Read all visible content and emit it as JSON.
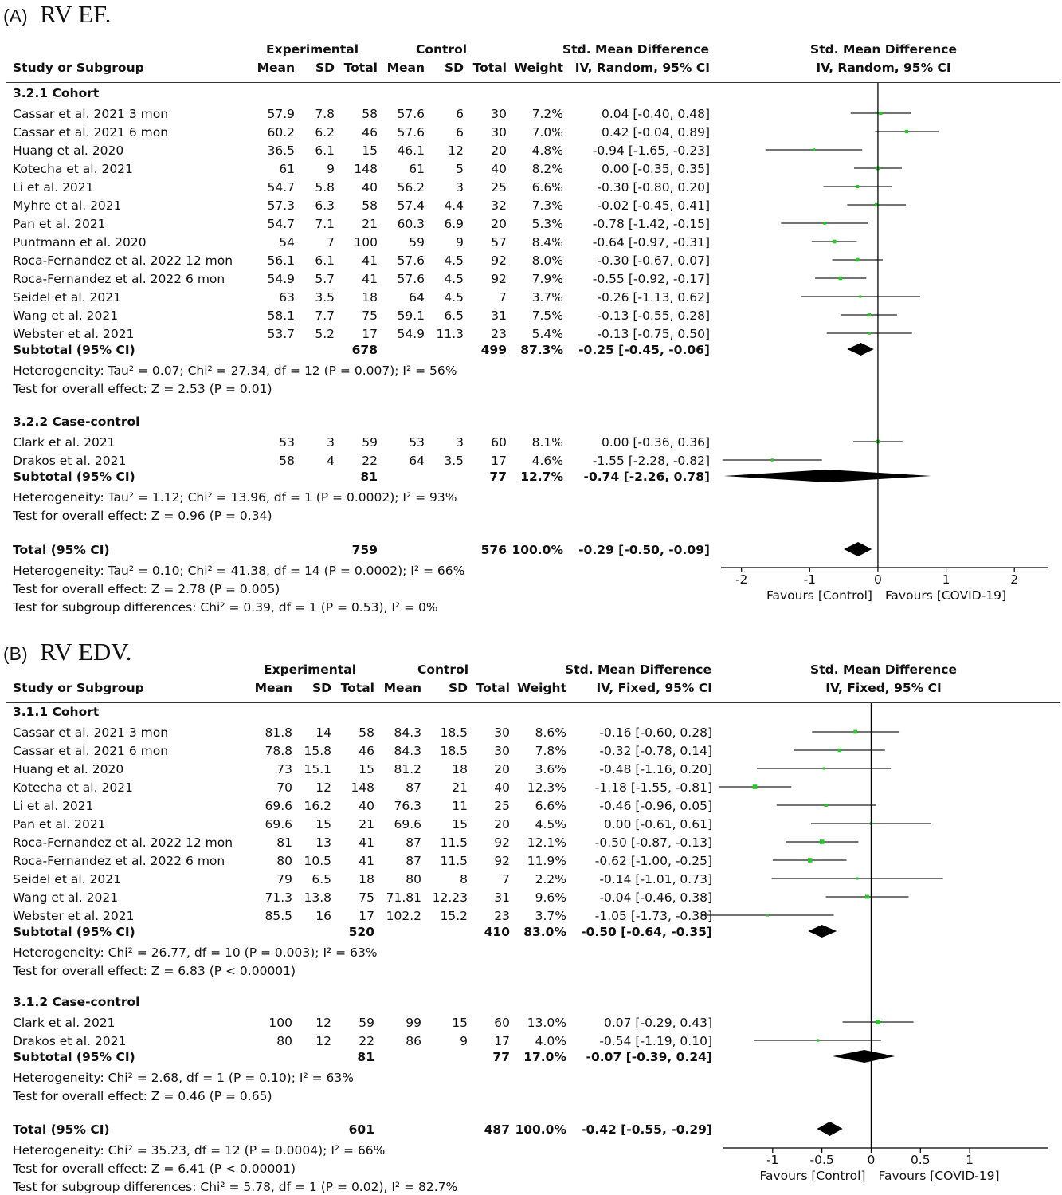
{
  "panels": [
    {
      "title_letter": "(A)",
      "title_text": "RV EF.",
      "method": "IV, Random, 95% CI",
      "header": {
        "study": "Study or Subgroup",
        "experimental": "Experimental",
        "control": "Control",
        "mean": "Mean",
        "sd": "SD",
        "total": "Total",
        "weight": "Weight",
        "smd": "Std. Mean Difference"
      },
      "subgroups": [
        {
          "name": "3.2.1 Cohort",
          "studies": [
            {
              "study": "Cassar et al. 2021 3 mon",
              "exp_mean": "57.9",
              "exp_sd": "7.8",
              "exp_total": "58",
              "ctl_mean": "57.6",
              "ctl_sd": "6",
              "ctl_total": "30",
              "weight": "7.2%",
              "ci_text": "0.04 [-0.40, 0.48]"
            },
            {
              "study": "Cassar et al. 2021 6 mon",
              "exp_mean": "60.2",
              "exp_sd": "6.2",
              "exp_total": "46",
              "ctl_mean": "57.6",
              "ctl_sd": "6",
              "ctl_total": "30",
              "weight": "7.0%",
              "ci_text": "0.42 [-0.04, 0.89]"
            },
            {
              "study": "Huang et al. 2020",
              "exp_mean": "36.5",
              "exp_sd": "6.1",
              "exp_total": "15",
              "ctl_mean": "46.1",
              "ctl_sd": "12",
              "ctl_total": "20",
              "weight": "4.8%",
              "ci_text": "-0.94 [-1.65, -0.23]"
            },
            {
              "study": "Kotecha et al. 2021",
              "exp_mean": "61",
              "exp_sd": "9",
              "exp_total": "148",
              "ctl_mean": "61",
              "ctl_sd": "5",
              "ctl_total": "40",
              "weight": "8.2%",
              "ci_text": "0.00 [-0.35, 0.35]"
            },
            {
              "study": "Li et al. 2021",
              "exp_mean": "54.7",
              "exp_sd": "5.8",
              "exp_total": "40",
              "ctl_mean": "56.2",
              "ctl_sd": "3",
              "ctl_total": "25",
              "weight": "6.6%",
              "ci_text": "-0.30 [-0.80, 0.20]"
            },
            {
              "study": "Myhre et al. 2021",
              "exp_mean": "57.3",
              "exp_sd": "6.3",
              "exp_total": "58",
              "ctl_mean": "57.4",
              "ctl_sd": "4.4",
              "ctl_total": "32",
              "weight": "7.3%",
              "ci_text": "-0.02 [-0.45, 0.41]"
            },
            {
              "study": "Pan et al. 2021",
              "exp_mean": "54.7",
              "exp_sd": "7.1",
              "exp_total": "21",
              "ctl_mean": "60.3",
              "ctl_sd": "6.9",
              "ctl_total": "20",
              "weight": "5.3%",
              "ci_text": "-0.78 [-1.42, -0.15]"
            },
            {
              "study": "Puntmann et al. 2020",
              "exp_mean": "54",
              "exp_sd": "7",
              "exp_total": "100",
              "ctl_mean": "59",
              "ctl_sd": "9",
              "ctl_total": "57",
              "weight": "8.4%",
              "ci_text": "-0.64 [-0.97, -0.31]"
            },
            {
              "study": "Roca-Fernandez et al. 2022 12 mon",
              "exp_mean": "56.1",
              "exp_sd": "6.1",
              "exp_total": "41",
              "ctl_mean": "57.6",
              "ctl_sd": "4.5",
              "ctl_total": "92",
              "weight": "8.0%",
              "ci_text": "-0.30 [-0.67, 0.07]"
            },
            {
              "study": "Roca-Fernandez et al. 2022 6 mon",
              "exp_mean": "54.9",
              "exp_sd": "5.7",
              "exp_total": "41",
              "ctl_mean": "57.6",
              "ctl_sd": "4.5",
              "ctl_total": "92",
              "weight": "7.9%",
              "ci_text": "-0.55 [-0.92, -0.17]"
            },
            {
              "study": "Seidel et al. 2021",
              "exp_mean": "63",
              "exp_sd": "3.5",
              "exp_total": "18",
              "ctl_mean": "64",
              "ctl_sd": "4.5",
              "ctl_total": "7",
              "weight": "3.7%",
              "ci_text": "-0.26 [-1.13, 0.62]"
            },
            {
              "study": "Wang et al. 2021",
              "exp_mean": "58.1",
              "exp_sd": "7.7",
              "exp_total": "75",
              "ctl_mean": "59.1",
              "ctl_sd": "6.5",
              "ctl_total": "31",
              "weight": "7.5%",
              "ci_text": "-0.13 [-0.55, 0.28]"
            },
            {
              "study": "Webster et al. 2021",
              "exp_mean": "53.7",
              "exp_sd": "5.2",
              "exp_total": "17",
              "ctl_mean": "54.9",
              "ctl_sd": "11.3",
              "ctl_total": "23",
              "weight": "5.4%",
              "ci_text": "-0.13 [-0.75, 0.50]"
            }
          ],
          "subtotal": {
            "label": "Subtotal (95% CI)",
            "exp_total": "678",
            "ctl_total": "499",
            "weight": "87.3%",
            "ci_text": "-0.25 [-0.45, -0.06]"
          },
          "heterogeneity": "Heterogeneity: Tau² = 0.07; Chi² = 27.34, df = 12 (P = 0.007); I² = 56%",
          "overall": "Test for overall effect: Z = 2.53 (P = 0.01)"
        },
        {
          "name": "3.2.2 Case-control",
          "studies": [
            {
              "study": "Clark et al. 2021",
              "exp_mean": "53",
              "exp_sd": "3",
              "exp_total": "59",
              "ctl_mean": "53",
              "ctl_sd": "3",
              "ctl_total": "60",
              "weight": "8.1%",
              "ci_text": "0.00 [-0.36, 0.36]"
            },
            {
              "study": "Drakos et al. 2021",
              "exp_mean": "58",
              "exp_sd": "4",
              "exp_total": "22",
              "ctl_mean": "64",
              "ctl_sd": "3.5",
              "ctl_total": "17",
              "weight": "4.6%",
              "ci_text": "-1.55 [-2.28, -0.82]"
            }
          ],
          "subtotal": {
            "label": "Subtotal (95% CI)",
            "exp_total": "81",
            "ctl_total": "77",
            "weight": "12.7%",
            "ci_text": "-0.74 [-2.26, 0.78]"
          },
          "heterogeneity": "Heterogeneity: Tau² = 1.12; Chi² = 13.96, df = 1 (P = 0.0002); I² = 93%",
          "overall": "Test for overall effect: Z = 0.96 (P = 0.34)"
        }
      ],
      "total": {
        "label": "Total (95% CI)",
        "exp_total": "759",
        "ctl_total": "576",
        "weight": "100.0%",
        "ci_text": "-0.29 [-0.50, -0.09]"
      },
      "footer": [
        "Heterogeneity: Tau² = 0.10; Chi² = 41.38, df = 14 (P = 0.0002); I² = 66%",
        "Test for overall effect: Z = 2.78 (P = 0.005)",
        "Test for subgroup differences: Chi² = 0.39, df = 1 (P = 0.53), I² = 0%"
      ],
      "axis": {
        "ticks": [
          "-2",
          "-1",
          "0",
          "1",
          "2"
        ]
      },
      "favours_left": "Favours [Control]",
      "favours_right": "Favours [COVID-19]"
    },
    {
      "title_letter": "(B)",
      "title_text": "RV EDV.",
      "method": "IV, Fixed, 95% CI",
      "header": {
        "study": "Study or Subgroup",
        "experimental": "Experimental",
        "control": "Control",
        "mean": "Mean",
        "sd": "SD",
        "total": "Total",
        "weight": "Weight",
        "smd": "Std. Mean Difference"
      },
      "subgroups": [
        {
          "name": "3.1.1 Cohort",
          "studies": [
            {
              "study": "Cassar et al. 2021 3 mon",
              "exp_mean": "81.8",
              "exp_sd": "14",
              "exp_total": "58",
              "ctl_mean": "84.3",
              "ctl_sd": "18.5",
              "ctl_total": "30",
              "weight": "8.6%",
              "ci_text": "-0.16 [-0.60, 0.28]"
            },
            {
              "study": "Cassar et al. 2021 6 mon",
              "exp_mean": "78.8",
              "exp_sd": "15.8",
              "exp_total": "46",
              "ctl_mean": "84.3",
              "ctl_sd": "18.5",
              "ctl_total": "30",
              "weight": "7.8%",
              "ci_text": "-0.32 [-0.78, 0.14]"
            },
            {
              "study": "Huang et al. 2020",
              "exp_mean": "73",
              "exp_sd": "15.1",
              "exp_total": "15",
              "ctl_mean": "81.2",
              "ctl_sd": "18",
              "ctl_total": "20",
              "weight": "3.6%",
              "ci_text": "-0.48 [-1.16, 0.20]"
            },
            {
              "study": "Kotecha et al. 2021",
              "exp_mean": "70",
              "exp_sd": "12",
              "exp_total": "148",
              "ctl_mean": "87",
              "ctl_sd": "21",
              "ctl_total": "40",
              "weight": "12.3%",
              "ci_text": "-1.18 [-1.55, -0.81]"
            },
            {
              "study": "Li et al. 2021",
              "exp_mean": "69.6",
              "exp_sd": "16.2",
              "exp_total": "40",
              "ctl_mean": "76.3",
              "ctl_sd": "11",
              "ctl_total": "25",
              "weight": "6.6%",
              "ci_text": "-0.46 [-0.96, 0.05]"
            },
            {
              "study": "Pan et al. 2021",
              "exp_mean": "69.6",
              "exp_sd": "15",
              "exp_total": "21",
              "ctl_mean": "69.6",
              "ctl_sd": "15",
              "ctl_total": "20",
              "weight": "4.5%",
              "ci_text": "0.00 [-0.61, 0.61]"
            },
            {
              "study": "Roca-Fernandez et al. 2022 12 mon",
              "exp_mean": "81",
              "exp_sd": "13",
              "exp_total": "41",
              "ctl_mean": "87",
              "ctl_sd": "11.5",
              "ctl_total": "92",
              "weight": "12.1%",
              "ci_text": "-0.50 [-0.87, -0.13]"
            },
            {
              "study": "Roca-Fernandez et al. 2022 6 mon",
              "exp_mean": "80",
              "exp_sd": "10.5",
              "exp_total": "41",
              "ctl_mean": "87",
              "ctl_sd": "11.5",
              "ctl_total": "92",
              "weight": "11.9%",
              "ci_text": "-0.62 [-1.00, -0.25]"
            },
            {
              "study": "Seidel et al. 2021",
              "exp_mean": "79",
              "exp_sd": "6.5",
              "exp_total": "18",
              "ctl_mean": "80",
              "ctl_sd": "8",
              "ctl_total": "7",
              "weight": "2.2%",
              "ci_text": "-0.14 [-1.01, 0.73]"
            },
            {
              "study": "Wang et al. 2021",
              "exp_mean": "71.3",
              "exp_sd": "13.8",
              "exp_total": "75",
              "ctl_mean": "71.81",
              "ctl_sd": "12.23",
              "ctl_total": "31",
              "weight": "9.6%",
              "ci_text": "-0.04 [-0.46, 0.38]"
            },
            {
              "study": "Webster et al. 2021",
              "exp_mean": "85.5",
              "exp_sd": "16",
              "exp_total": "17",
              "ctl_mean": "102.2",
              "ctl_sd": "15.2",
              "ctl_total": "23",
              "weight": "3.7%",
              "ci_text": "-1.05 [-1.73, -0.38]"
            }
          ],
          "subtotal": {
            "label": "Subtotal (95% CI)",
            "exp_total": "520",
            "ctl_total": "410",
            "weight": "83.0%",
            "ci_text": "-0.50 [-0.64, -0.35]"
          },
          "heterogeneity": "Heterogeneity: Chi² = 26.77, df = 10 (P = 0.003); I² = 63%",
          "overall": "Test for overall effect: Z = 6.83 (P < 0.00001)"
        },
        {
          "name": "3.1.2 Case-control",
          "studies": [
            {
              "study": "Clark et al. 2021",
              "exp_mean": "100",
              "exp_sd": "12",
              "exp_total": "59",
              "ctl_mean": "99",
              "ctl_sd": "15",
              "ctl_total": "60",
              "weight": "13.0%",
              "ci_text": "0.07 [-0.29, 0.43]"
            },
            {
              "study": "Drakos et al. 2021",
              "exp_mean": "80",
              "exp_sd": "12",
              "exp_total": "22",
              "ctl_mean": "86",
              "ctl_sd": "9",
              "ctl_total": "17",
              "weight": "4.0%",
              "ci_text": "-0.54 [-1.19, 0.10]"
            }
          ],
          "subtotal": {
            "label": "Subtotal (95% CI)",
            "exp_total": "81",
            "ctl_total": "77",
            "weight": "17.0%",
            "ci_text": "-0.07 [-0.39, 0.24]"
          },
          "heterogeneity": "Heterogeneity: Chi² = 2.68, df = 1 (P = 0.10); I² = 63%",
          "overall": "Test for overall effect: Z = 0.46 (P = 0.65)"
        }
      ],
      "total": {
        "label": "Total (95% CI)",
        "exp_total": "601",
        "ctl_total": "487",
        "weight": "100.0%",
        "ci_text": "-0.42 [-0.55, -0.29]"
      },
      "footer": [
        "Heterogeneity: Chi² = 35.23, df = 12 (P = 0.0004); I² = 66%",
        "Test for overall effect: Z = 6.41 (P < 0.00001)",
        "Test for subgroup differences: Chi² = 5.78, df = 1 (P = 0.02), I² = 82.7%"
      ],
      "axis": {
        "ticks": [
          "-1",
          "-0.5",
          "0",
          "0.5",
          "1"
        ]
      },
      "favours_left": "Favours [Control]",
      "favours_right": "Favours [COVID-19]"
    }
  ],
  "chart_data": [
    {
      "type": "forest",
      "title": "RV EF.",
      "xlim": [
        -2,
        2
      ],
      "xticks": [
        -2,
        -1,
        0,
        1,
        2
      ],
      "marker_color": "#22cc22",
      "studies": [
        {
          "name": "Cassar et al. 2021 3 mon",
          "est": 0.04,
          "lo": -0.4,
          "hi": 0.48,
          "weight": 7.2
        },
        {
          "name": "Cassar et al. 2021 6 mon",
          "est": 0.42,
          "lo": -0.04,
          "hi": 0.89,
          "weight": 7.0
        },
        {
          "name": "Huang et al. 2020",
          "est": -0.94,
          "lo": -1.65,
          "hi": -0.23,
          "weight": 4.8
        },
        {
          "name": "Kotecha et al. 2021",
          "est": 0.0,
          "lo": -0.35,
          "hi": 0.35,
          "weight": 8.2
        },
        {
          "name": "Li et al. 2021",
          "est": -0.3,
          "lo": -0.8,
          "hi": 0.2,
          "weight": 6.6
        },
        {
          "name": "Myhre et al. 2021",
          "est": -0.02,
          "lo": -0.45,
          "hi": 0.41,
          "weight": 7.3
        },
        {
          "name": "Pan et al. 2021",
          "est": -0.78,
          "lo": -1.42,
          "hi": -0.15,
          "weight": 5.3
        },
        {
          "name": "Puntmann et al. 2020",
          "est": -0.64,
          "lo": -0.97,
          "hi": -0.31,
          "weight": 8.4
        },
        {
          "name": "Roca-Fernandez et al. 2022 12 mon",
          "est": -0.3,
          "lo": -0.67,
          "hi": 0.07,
          "weight": 8.0
        },
        {
          "name": "Roca-Fernandez et al. 2022 6 mon",
          "est": -0.55,
          "lo": -0.92,
          "hi": -0.17,
          "weight": 7.9
        },
        {
          "name": "Seidel et al. 2021",
          "est": -0.26,
          "lo": -1.13,
          "hi": 0.62,
          "weight": 3.7
        },
        {
          "name": "Wang et al. 2021",
          "est": -0.13,
          "lo": -0.55,
          "hi": 0.28,
          "weight": 7.5
        },
        {
          "name": "Webster et al. 2021",
          "est": -0.13,
          "lo": -0.75,
          "hi": 0.5,
          "weight": 5.4
        },
        {
          "name": "Clark et al. 2021",
          "est": 0.0,
          "lo": -0.36,
          "hi": 0.36,
          "weight": 8.1
        },
        {
          "name": "Drakos et al. 2021",
          "est": -1.55,
          "lo": -2.28,
          "hi": -0.82,
          "weight": 4.6
        }
      ],
      "diamonds": [
        {
          "name": "Subtotal 3.2.1 Cohort",
          "est": -0.25,
          "lo": -0.45,
          "hi": -0.06
        },
        {
          "name": "Subtotal 3.2.2 Case-control",
          "est": -0.74,
          "lo": -2.26,
          "hi": 0.78
        },
        {
          "name": "Total",
          "est": -0.29,
          "lo": -0.5,
          "hi": -0.09
        }
      ]
    },
    {
      "type": "forest",
      "title": "RV EDV.",
      "xlim": [
        -1.2,
        1.8
      ],
      "xticks": [
        -1,
        -0.5,
        0,
        0.5,
        1
      ],
      "marker_color": "#22cc22",
      "studies": [
        {
          "name": "Cassar et al. 2021 3 mon",
          "est": -0.16,
          "lo": -0.6,
          "hi": 0.28,
          "weight": 8.6
        },
        {
          "name": "Cassar et al. 2021 6 mon",
          "est": -0.32,
          "lo": -0.78,
          "hi": 0.14,
          "weight": 7.8
        },
        {
          "name": "Huang et al. 2020",
          "est": -0.48,
          "lo": -1.16,
          "hi": 0.2,
          "weight": 3.6
        },
        {
          "name": "Kotecha et al. 2021",
          "est": -1.18,
          "lo": -1.55,
          "hi": -0.81,
          "weight": 12.3
        },
        {
          "name": "Li et al. 2021",
          "est": -0.46,
          "lo": -0.96,
          "hi": 0.05,
          "weight": 6.6
        },
        {
          "name": "Pan et al. 2021",
          "est": 0.0,
          "lo": -0.61,
          "hi": 0.61,
          "weight": 4.5
        },
        {
          "name": "Roca-Fernandez et al. 2022 12 mon",
          "est": -0.5,
          "lo": -0.87,
          "hi": -0.13,
          "weight": 12.1
        },
        {
          "name": "Roca-Fernandez et al. 2022 6 mon",
          "est": -0.62,
          "lo": -1.0,
          "hi": -0.25,
          "weight": 11.9
        },
        {
          "name": "Seidel et al. 2021",
          "est": -0.14,
          "lo": -1.01,
          "hi": 0.73,
          "weight": 2.2
        },
        {
          "name": "Wang et al. 2021",
          "est": -0.04,
          "lo": -0.46,
          "hi": 0.38,
          "weight": 9.6
        },
        {
          "name": "Webster et al. 2021",
          "est": -1.05,
          "lo": -1.73,
          "hi": -0.38,
          "weight": 3.7
        },
        {
          "name": "Clark et al. 2021",
          "est": 0.07,
          "lo": -0.29,
          "hi": 0.43,
          "weight": 13.0
        },
        {
          "name": "Drakos et al. 2021",
          "est": -0.54,
          "lo": -1.19,
          "hi": 0.1,
          "weight": 4.0
        }
      ],
      "diamonds": [
        {
          "name": "Subtotal 3.1.1 Cohort",
          "est": -0.5,
          "lo": -0.64,
          "hi": -0.35
        },
        {
          "name": "Subtotal 3.1.2 Case-control",
          "est": -0.07,
          "lo": -0.39,
          "hi": 0.24
        },
        {
          "name": "Total",
          "est": -0.42,
          "lo": -0.55,
          "hi": -0.29
        }
      ]
    }
  ]
}
